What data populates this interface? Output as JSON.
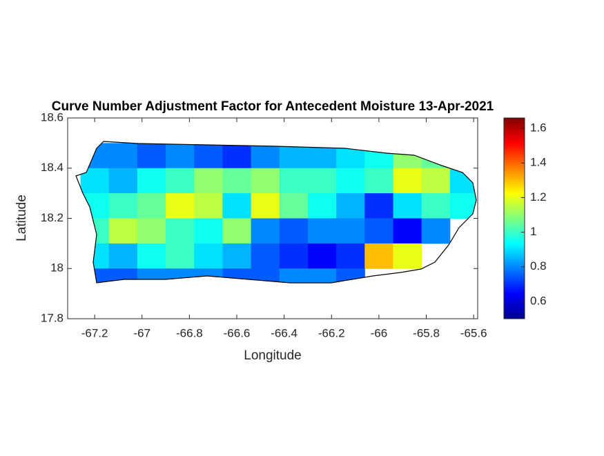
{
  "chart_data": {
    "type": "heatmap",
    "title": "Curve Number Adjustment Factor for Antecedent Moisture 13-Apr-2021",
    "x_label": "Longitude",
    "y_label": "Latitude",
    "xlim": [
      -67.314,
      -65.583
    ],
    "ylim": [
      17.8,
      18.6
    ],
    "xticks": [
      -67.2,
      -67,
      -66.8,
      -66.6,
      -66.4,
      -66.2,
      -66,
      -65.8,
      -65.6
    ],
    "yticks": [
      17.8,
      18,
      18.2,
      18.4,
      18.6
    ],
    "clim": [
      0.5,
      1.66
    ],
    "cticks": [
      0.6,
      0.8,
      1,
      1.2,
      1.4,
      1.6
    ],
    "colormap": "jet",
    "x": [
      -67.2,
      -67.08,
      -66.96,
      -66.84,
      -66.72,
      -66.6,
      -66.48,
      -66.36,
      -66.24,
      -66.12,
      -66.0,
      -65.88,
      -65.76,
      -65.64
    ],
    "y": [
      18.45,
      18.35,
      18.25,
      18.15,
      18.05,
      17.95
    ],
    "z": [
      [
        0.8,
        0.8,
        0.75,
        0.8,
        0.75,
        0.7,
        0.8,
        0.85,
        0.85,
        0.9,
        0.95,
        1.1,
        1.05,
        0.9
      ],
      [
        0.9,
        0.85,
        0.95,
        1.0,
        1.1,
        1.05,
        1.1,
        1.0,
        1.0,
        0.95,
        1.0,
        1.2,
        1.15,
        0.9
      ],
      [
        0.95,
        1.0,
        1.05,
        1.2,
        1.15,
        0.9,
        1.2,
        1.05,
        0.95,
        0.85,
        0.7,
        0.9,
        1.0,
        0.95
      ],
      [
        1.0,
        1.15,
        1.1,
        1.0,
        0.95,
        1.1,
        0.8,
        0.75,
        0.8,
        0.8,
        0.75,
        0.65,
        0.8,
        null
      ],
      [
        0.9,
        0.85,
        0.95,
        1.0,
        0.9,
        0.85,
        0.75,
        0.7,
        0.65,
        0.7,
        1.3,
        1.2,
        null,
        null
      ],
      [
        0.75,
        0.75,
        0.8,
        0.8,
        0.8,
        0.75,
        0.75,
        0.8,
        0.8,
        0.75,
        null,
        null,
        null,
        null
      ]
    ]
  }
}
